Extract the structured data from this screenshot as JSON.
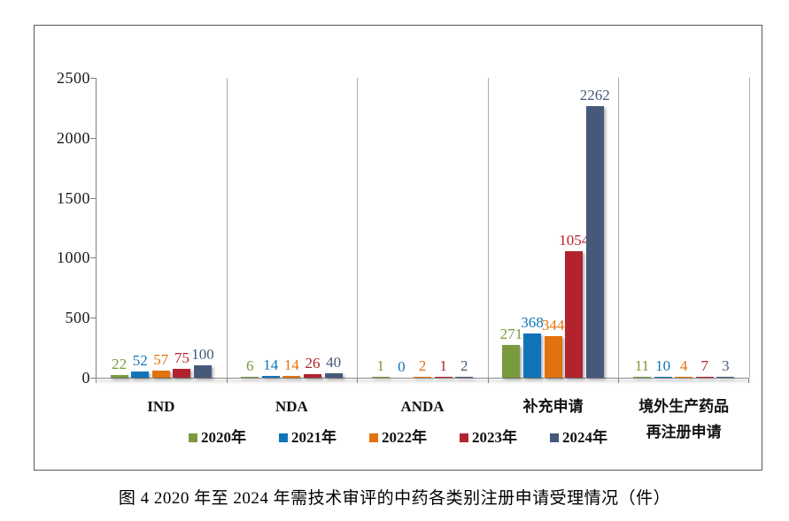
{
  "caption": "图 4  2020 年至 2024 年需技术审评的中药各类别注册申请受理情况（件）",
  "chart_data": {
    "type": "bar",
    "title": "",
    "categories": [
      "IND",
      "NDA",
      "ANDA",
      "补充申请",
      "境外生产药品再注册申请"
    ],
    "category_label_lines": [
      [
        "IND"
      ],
      [
        "NDA"
      ],
      [
        "ANDA"
      ],
      [
        "补充申请"
      ],
      [
        "境外生产药品",
        "再注册申请"
      ]
    ],
    "series": [
      {
        "name": "2020年",
        "color": "#7A9A3E",
        "values": [
          22,
          6,
          1,
          271,
          11
        ]
      },
      {
        "name": "2021年",
        "color": "#1274B8",
        "values": [
          52,
          14,
          0,
          368,
          10
        ]
      },
      {
        "name": "2022年",
        "color": "#E2720E",
        "values": [
          57,
          14,
          2,
          344,
          4
        ]
      },
      {
        "name": "2023年",
        "color": "#B2232D",
        "values": [
          75,
          26,
          1,
          1054,
          7
        ]
      },
      {
        "name": "2024年",
        "color": "#46597B",
        "values": [
          100,
          40,
          2,
          2262,
          3
        ]
      }
    ],
    "ylim": [
      0,
      2500
    ],
    "yticks": [
      0,
      500,
      1000,
      1500,
      2000,
      2500
    ],
    "ylabel": "",
    "xlabel": "",
    "grid": "category-separators",
    "legend_position": "bottom",
    "show_data_labels": true
  }
}
